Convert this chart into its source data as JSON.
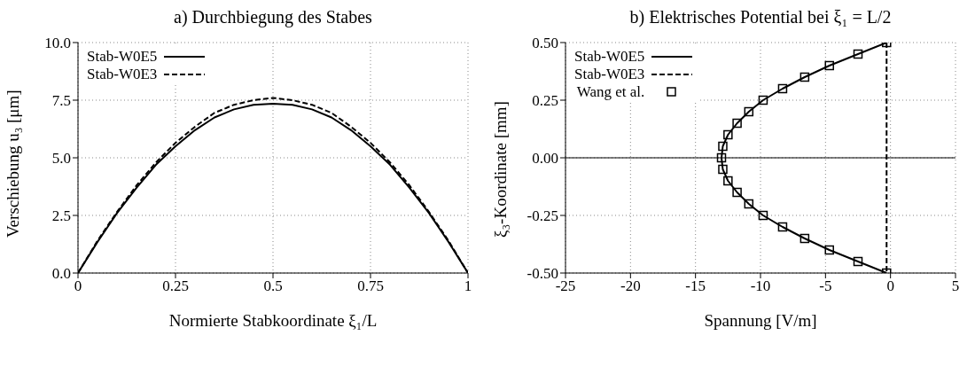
{
  "chart_data": [
    {
      "type": "line",
      "title": "a) Durchbiegung des Stabes",
      "xlabel": "Normierte Stabkoordinate ξ₁/L",
      "ylabel": "Verschiebung u₃ [μm]",
      "x": [
        0,
        0.05,
        0.1,
        0.15,
        0.2,
        0.25,
        0.3,
        0.35,
        0.4,
        0.45,
        0.5,
        0.55,
        0.6,
        0.65,
        0.7,
        0.75,
        0.8,
        0.85,
        0.9,
        0.95,
        1
      ],
      "series": [
        {
          "name": "Stab-W0E5",
          "color": "#000000",
          "line_style": "solid",
          "values": [
            0,
            1.35,
            2.6,
            3.7,
            4.7,
            5.5,
            6.2,
            6.75,
            7.1,
            7.3,
            7.35,
            7.3,
            7.1,
            6.75,
            6.2,
            5.5,
            4.7,
            3.7,
            2.6,
            1.35,
            0
          ]
        },
        {
          "name": "Stab-W0E3",
          "color": "#000000",
          "line_style": "dashed",
          "values": [
            0,
            1.4,
            2.65,
            3.8,
            4.8,
            5.65,
            6.35,
            6.95,
            7.3,
            7.5,
            7.6,
            7.5,
            7.3,
            6.95,
            6.35,
            5.65,
            4.8,
            3.8,
            2.65,
            1.4,
            0
          ]
        }
      ],
      "xlim": [
        0,
        1
      ],
      "xticks": [
        0,
        0.25,
        0.5,
        0.75,
        1
      ],
      "ylim": [
        0,
        10
      ],
      "yticks": [
        {
          "value": 0,
          "label": "0.0"
        },
        {
          "value": 2.5,
          "label": "2.5"
        },
        {
          "value": 5,
          "label": "5.0"
        },
        {
          "value": 7.5,
          "label": "7.5"
        },
        {
          "value": 10,
          "label": "10.0"
        }
      ],
      "grid": true,
      "legend": "top left"
    },
    {
      "type": "line",
      "title": "b) Elektrisches Potential bei ξ₁ = L/2",
      "xlabel": "Spannung [V/m]",
      "ylabel": "ξ₃-Koordinate [mm]",
      "series": [
        {
          "name": "Stab-W0E5",
          "color": "#000000",
          "line_style": "solid",
          "x": [
            -0.3,
            -2.5,
            -4.7,
            -6.6,
            -8.3,
            -9.8,
            -10.9,
            -11.8,
            -12.5,
            -12.9,
            -13.0,
            -12.9,
            -12.5,
            -11.8,
            -10.9,
            -9.8,
            -8.3,
            -6.6,
            -4.7,
            -2.5,
            -0.3
          ],
          "values": [
            0.5,
            0.45,
            0.4,
            0.35,
            0.3,
            0.25,
            0.2,
            0.15,
            0.1,
            0.05,
            0,
            -0.05,
            -0.1,
            -0.15,
            -0.2,
            -0.25,
            -0.3,
            -0.35,
            -0.4,
            -0.45,
            -0.5
          ]
        },
        {
          "name": "Stab-W0E3",
          "color": "#000000",
          "line_style": "dashed",
          "x": [
            -0.3,
            -0.3
          ],
          "values": [
            0.5,
            -0.5
          ]
        },
        {
          "name": "Wang et al.",
          "type": "scatter",
          "color": "#000000",
          "marker": "square",
          "x": [
            -0.3,
            -2.5,
            -4.7,
            -6.6,
            -8.3,
            -9.8,
            -10.9,
            -11.8,
            -12.5,
            -12.9,
            -13.0,
            -12.9,
            -12.5,
            -11.8,
            -10.9,
            -9.8,
            -8.3,
            -6.6,
            -4.7,
            -2.5,
            -0.3
          ],
          "values": [
            0.5,
            0.45,
            0.4,
            0.35,
            0.3,
            0.25,
            0.2,
            0.15,
            0.1,
            0.05,
            0,
            -0.05,
            -0.1,
            -0.15,
            -0.2,
            -0.25,
            -0.3,
            -0.35,
            -0.4,
            -0.45,
            -0.5
          ]
        }
      ],
      "xlim": [
        -25,
        5
      ],
      "xticks": [
        -25,
        -20,
        -15,
        -10,
        -5,
        0,
        5
      ],
      "ylim": [
        -0.5,
        0.5
      ],
      "yticks": [
        {
          "value": -0.5,
          "label": "-0.50"
        },
        {
          "value": -0.25,
          "label": "-0.25"
        },
        {
          "value": 0,
          "label": "0.00"
        },
        {
          "value": 0.25,
          "label": "0.25"
        },
        {
          "value": 0.5,
          "label": "0.50"
        }
      ],
      "ref_lines": [
        {
          "axis": "y",
          "value": 0,
          "color": "#000000",
          "line_style": "solid"
        }
      ],
      "grid": true,
      "legend": "top left"
    }
  ]
}
